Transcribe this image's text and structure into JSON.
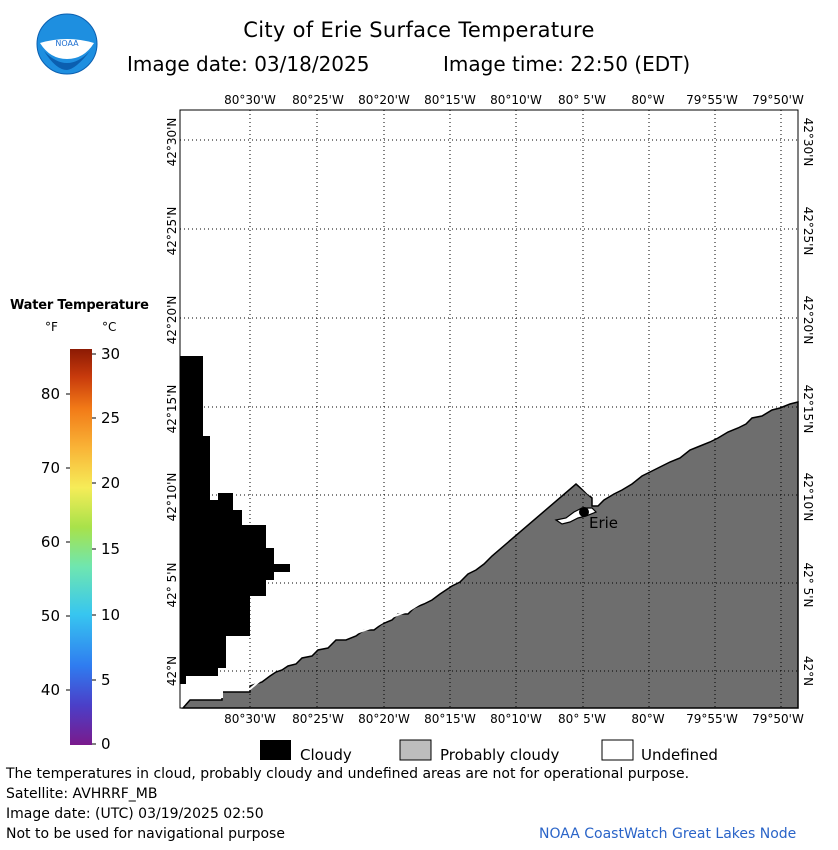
{
  "header": {
    "title": "City of Erie Surface Temperature",
    "image_date": "Image date: 03/18/2025",
    "image_time": "Image time: 22:50 (EDT)",
    "logo_text": "NOAA"
  },
  "map": {
    "lon_labels": [
      "80°30'W",
      "80°25'W",
      "80°20'W",
      "80°15'W",
      "80°10'W",
      "80° 5'W",
      "80°W",
      "79°55'W",
      "79°50'W"
    ],
    "lat_labels": [
      "42°30'N",
      "42°25'N",
      "42°20'N",
      "42°15'N",
      "42°10'N",
      "42° 5'N",
      "42°N"
    ],
    "city_label": "Erie",
    "colors": {
      "cloudy": "#000000",
      "probably_cloudy": "#6e6e6e",
      "undefined": "#ffffff",
      "grid": "#000000"
    }
  },
  "legend": {
    "title": "Water Temperature",
    "unit_f": "°F",
    "unit_c": "°C",
    "f_ticks": [
      "80",
      "70",
      "60",
      "50",
      "40"
    ],
    "c_ticks": [
      "30",
      "25",
      "20",
      "15",
      "10",
      "5",
      "0"
    ],
    "scale_colors": [
      "#7a1a8c",
      "#4b3fc8",
      "#2f7cf0",
      "#37c6f0",
      "#6fe6b0",
      "#a8e24a",
      "#f6ec58",
      "#f9b437",
      "#f27a17",
      "#c83a0c",
      "#8c1a04"
    ]
  },
  "key": {
    "cloudy": "Cloudy",
    "probably_cloudy": "Probably cloudy",
    "undefined": "Undefined"
  },
  "footer": {
    "disclaimer": "The temperatures in cloud, probably cloudy and undefined areas are not for operational purpose.",
    "satellite": "Satellite: AVHRRF_MB",
    "utc_date": "Image date: (UTC) 03/19/2025  02:50",
    "nav_warning": "Not to be used for navigational purpose",
    "credit": "NOAA CoastWatch Great Lakes Node"
  }
}
